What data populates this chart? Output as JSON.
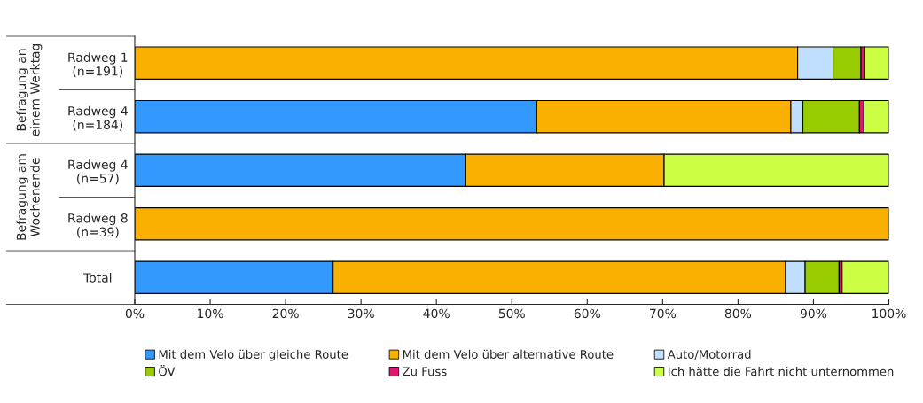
{
  "chart_data": {
    "type": "bar",
    "orientation": "horizontal",
    "stacked": true,
    "categories": [
      "Radweg 1\n(n=191)",
      "Radweg 4\n(n=184)",
      "Radweg 4\n(n=57)",
      "Radweg 8\n(n=39)",
      "Total"
    ],
    "series": [
      {
        "name": "Mit dem Velo über gleiche Route",
        "color": "#3399ff",
        "values": [
          null,
          53.3,
          43.9,
          null,
          26.3
        ]
      },
      {
        "name": "Mit dem Velo über alternative Route",
        "color": "#f9b000",
        "values": [
          87.9,
          33.7,
          26.3,
          100,
          60.0
        ]
      },
      {
        "name": "Auto/Motorrad",
        "color": "#c0dfff",
        "values": [
          4.7,
          1.6,
          null,
          null,
          2.6
        ]
      },
      {
        "name": "ÖV",
        "color": "#99cc00",
        "values": [
          3.7,
          7.5,
          null,
          null,
          4.5
        ]
      },
      {
        "name": "Zu Fuss",
        "color": "#e0176f",
        "values": [
          0.5,
          0.6,
          null,
          null,
          0.4
        ]
      },
      {
        "name": "Ich hätte die Fahrt nicht unternommen",
        "color": "#ccff44",
        "values": [
          3.2,
          3.3,
          29.8,
          null,
          6.2
        ]
      }
    ],
    "xlim": [
      0,
      100
    ],
    "xticks": [
      {
        "value": 0,
        "label": "0%"
      },
      {
        "value": 10,
        "label": "10%"
      },
      {
        "value": 20,
        "label": "20%"
      },
      {
        "value": 30,
        "label": "30%"
      },
      {
        "value": 40,
        "label": "40%"
      },
      {
        "value": 50,
        "label": "50%"
      },
      {
        "value": 60,
        "label": "60%"
      },
      {
        "value": 70,
        "label": "70%"
      },
      {
        "value": 80,
        "label": "80%"
      },
      {
        "value": 90,
        "label": "90%"
      },
      {
        "value": 100,
        "label": "100%"
      }
    ],
    "annotations": [
      "Befragung an\neinem Werktag",
      "Befragung am\nWochenende"
    ],
    "grid": false,
    "legend": "bottom"
  }
}
